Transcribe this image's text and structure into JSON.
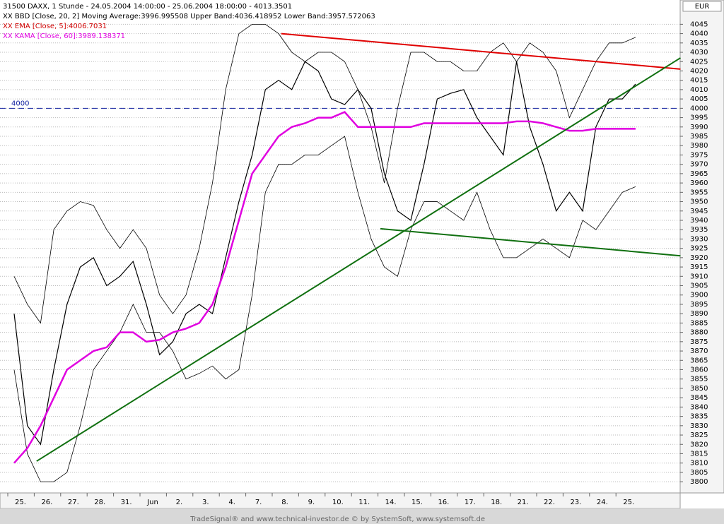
{
  "chart_data": {
    "type": "line",
    "title": "31500  DAXX, 1 Stunde - 24.05.2004 14:00:00 - 25.06.2004 18:00:00 - 4013.3501",
    "legend_lines": [
      {
        "text": "XX BBD [Close, 20, 2] Moving Average:3996.995508 Upper Band:4036.418952 Lower Band:3957.572063",
        "color": "#000000"
      },
      {
        "text": "XX EMA [Close, 5]:4006.7031",
        "color": "#d00000"
      },
      {
        "text": "XX KAMA [Close, 60]:3989.138371",
        "color": "#e000e0"
      }
    ],
    "y_axis_unit": "EUR",
    "footer": "TradeSignal® and www.technical-investor.de © by SystemSoft, www.systemsoft.de",
    "categories": [
      "25.",
      null,
      "26.",
      null,
      "27.",
      null,
      "28.",
      null,
      "31.",
      null,
      "Jun",
      null,
      "2.",
      null,
      "3.",
      null,
      "4.",
      null,
      "7.",
      null,
      "8.",
      null,
      "9.",
      null,
      "10.",
      null,
      "11.",
      null,
      "14.",
      null,
      "15.",
      null,
      "16.",
      null,
      "17.",
      null,
      "18.",
      null,
      "21.",
      null,
      "22.",
      null,
      "23.",
      null,
      "24.",
      null,
      "25.",
      null
    ],
    "series": [
      {
        "name": "Close",
        "color": "#000000",
        "values": [
          3890,
          3830,
          3820,
          3860,
          3895,
          3915,
          3920,
          3905,
          3910,
          3918,
          3895,
          3868,
          3875,
          3890,
          3895,
          3890,
          3920,
          3950,
          3975,
          4010,
          4015,
          4010,
          4025,
          4020,
          4005,
          4002,
          4010,
          4000,
          3965,
          3945,
          3940,
          3970,
          4005,
          4008,
          4010,
          3995,
          3985,
          3975,
          4025,
          3990,
          3970,
          3945,
          3955,
          3945,
          3990,
          4005,
          4005,
          4013
        ]
      },
      {
        "name": "Upper Band",
        "color": "#000000",
        "values": [
          3910,
          3895,
          3885,
          3935,
          3945,
          3950,
          3948,
          3935,
          3925,
          3935,
          3925,
          3900,
          3890,
          3900,
          3925,
          3960,
          4010,
          4040,
          4045,
          4045,
          4040,
          4030,
          4025,
          4030,
          4030,
          4025,
          4010,
          3990,
          3960,
          4000,
          4030,
          4030,
          4025,
          4025,
          4020,
          4020,
          4030,
          4035,
          4025,
          4035,
          4030,
          4020,
          3995,
          4010,
          4025,
          4035,
          4035,
          4038
        ]
      },
      {
        "name": "Lower Band",
        "color": "#000000",
        "values": [
          3860,
          3815,
          3800,
          3800,
          3805,
          3830,
          3860,
          3870,
          3880,
          3895,
          3880,
          3880,
          3870,
          3855,
          3858,
          3862,
          3855,
          3860,
          3900,
          3955,
          3970,
          3970,
          3975,
          3975,
          3980,
          3985,
          3955,
          3930,
          3915,
          3910,
          3935,
          3950,
          3950,
          3945,
          3940,
          3955,
          3935,
          3920,
          3920,
          3925,
          3930,
          3925,
          3920,
          3940,
          3935,
          3945,
          3955,
          3958
        ]
      },
      {
        "name": "KAMA",
        "color": "#e000e0",
        "values": [
          3810,
          3818,
          3830,
          3845,
          3860,
          3865,
          3870,
          3872,
          3880,
          3880,
          3875,
          3876,
          3880,
          3882,
          3885,
          3895,
          3915,
          3940,
          3965,
          3975,
          3985,
          3990,
          3992,
          3995,
          3995,
          3998,
          3990,
          3990,
          3990,
          3990,
          3990,
          3992,
          3992,
          3992,
          3992,
          3992,
          3992,
          3992,
          3993,
          3993,
          3992,
          3990,
          3988,
          3988,
          3989,
          3989,
          3989,
          3989
        ]
      }
    ],
    "trendlines": [
      {
        "color": "#e00000",
        "x": [
          20.2,
          50.4
        ],
        "y": [
          4040,
          4021
        ]
      },
      {
        "color": "#107010",
        "x": [
          1.7,
          50.4
        ],
        "y": [
          3811,
          4027
        ]
      },
      {
        "color": "#107010",
        "x": [
          27.7,
          50.4
        ],
        "y": [
          3935.5,
          3921
        ]
      }
    ],
    "reference_line": {
      "value": 4000,
      "label": "4000",
      "color": "#1020a0"
    },
    "ylim": [
      3794,
      4058
    ],
    "yticks": [
      3800,
      3805,
      3810,
      3815,
      3820,
      3825,
      3830,
      3835,
      3840,
      3845,
      3850,
      3855,
      3860,
      3865,
      3870,
      3875,
      3880,
      3885,
      3890,
      3895,
      3900,
      3905,
      3910,
      3915,
      3920,
      3925,
      3930,
      3935,
      3940,
      3945,
      3950,
      3955,
      3960,
      3965,
      3970,
      3975,
      3980,
      3985,
      3990,
      3995,
      4000,
      4005,
      4010,
      4015,
      4020,
      4025,
      4030,
      4035,
      4040,
      4045
    ],
    "grid": true
  }
}
